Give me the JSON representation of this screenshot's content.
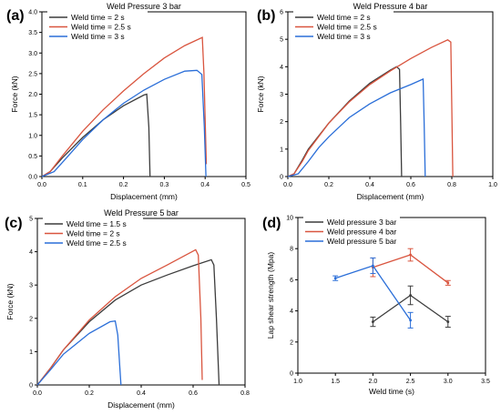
{
  "chart_data": [
    {
      "panel": "(a)",
      "type": "line",
      "title": "Weld Pressure 3 bar",
      "xlabel": "Displacement (mm)",
      "ylabel": "Force (kN)",
      "xlim": [
        0,
        0.5
      ],
      "ylim": [
        0,
        4.0
      ],
      "xticks": [
        "0.0",
        "0.1",
        "0.2",
        "0.3",
        "0.4",
        "0.5"
      ],
      "yticks": [
        "0.0",
        "0.5",
        "1.0",
        "1.5",
        "2.0",
        "2.5",
        "3.0",
        "3.5",
        "4.0"
      ],
      "legend_position": "top-left",
      "series": [
        {
          "name": "Weld time = 2 s",
          "color": "#3c3c3c",
          "points": [
            [
              0,
              0
            ],
            [
              0.02,
              0.12
            ],
            [
              0.05,
              0.45
            ],
            [
              0.1,
              0.95
            ],
            [
              0.15,
              1.38
            ],
            [
              0.2,
              1.72
            ],
            [
              0.25,
              1.98
            ],
            [
              0.257,
              2.0
            ],
            [
              0.262,
              1.2
            ],
            [
              0.265,
              0.0
            ]
          ]
        },
        {
          "name": "Weld time = 2.5 s",
          "color": "#d9553f",
          "points": [
            [
              0,
              0
            ],
            [
              0.02,
              0.12
            ],
            [
              0.05,
              0.5
            ],
            [
              0.1,
              1.1
            ],
            [
              0.15,
              1.62
            ],
            [
              0.2,
              2.08
            ],
            [
              0.25,
              2.5
            ],
            [
              0.3,
              2.88
            ],
            [
              0.35,
              3.18
            ],
            [
              0.393,
              3.38
            ],
            [
              0.397,
              2.5
            ],
            [
              0.403,
              0.3
            ]
          ]
        },
        {
          "name": "Weld time = 3 s",
          "color": "#2a6ed8",
          "points": [
            [
              0,
              0
            ],
            [
              0.03,
              0.12
            ],
            [
              0.06,
              0.45
            ],
            [
              0.1,
              0.9
            ],
            [
              0.15,
              1.38
            ],
            [
              0.2,
              1.78
            ],
            [
              0.25,
              2.1
            ],
            [
              0.3,
              2.36
            ],
            [
              0.35,
              2.56
            ],
            [
              0.38,
              2.58
            ],
            [
              0.392,
              2.48
            ],
            [
              0.398,
              1.2
            ],
            [
              0.402,
              0.0
            ]
          ]
        }
      ]
    },
    {
      "panel": "(b)",
      "type": "line",
      "title": "Weld Pressure 4 bar",
      "xlabel": "Displacement (mm)",
      "ylabel": "Force (kN)",
      "xlim": [
        0,
        1.0
      ],
      "ylim": [
        0,
        6
      ],
      "xticks": [
        "0.0",
        "0.2",
        "0.4",
        "0.6",
        "0.8",
        "1.0"
      ],
      "yticks": [
        "0",
        "1",
        "2",
        "3",
        "4",
        "5",
        "6"
      ],
      "legend_position": "top-left",
      "series": [
        {
          "name": "Weld time = 2 s",
          "color": "#3c3c3c",
          "points": [
            [
              0,
              0
            ],
            [
              0.03,
              0.1
            ],
            [
              0.07,
              0.6
            ],
            [
              0.1,
              1.0
            ],
            [
              0.2,
              1.95
            ],
            [
              0.3,
              2.75
            ],
            [
              0.4,
              3.4
            ],
            [
              0.5,
              3.88
            ],
            [
              0.53,
              4.0
            ],
            [
              0.545,
              3.9
            ],
            [
              0.55,
              2.0
            ],
            [
              0.555,
              0.0
            ]
          ]
        },
        {
          "name": "Weld time = 2.5 s",
          "color": "#d9553f",
          "points": [
            [
              0,
              0
            ],
            [
              0.03,
              0.1
            ],
            [
              0.07,
              0.55
            ],
            [
              0.1,
              0.95
            ],
            [
              0.2,
              1.95
            ],
            [
              0.3,
              2.72
            ],
            [
              0.4,
              3.35
            ],
            [
              0.5,
              3.85
            ],
            [
              0.6,
              4.3
            ],
            [
              0.7,
              4.7
            ],
            [
              0.78,
              4.98
            ],
            [
              0.795,
              4.9
            ],
            [
              0.8,
              2.5
            ],
            [
              0.805,
              0.0
            ]
          ]
        },
        {
          "name": "Weld time = 3 s",
          "color": "#2a6ed8",
          "points": [
            [
              0,
              0
            ],
            [
              0.05,
              0.1
            ],
            [
              0.1,
              0.55
            ],
            [
              0.15,
              1.05
            ],
            [
              0.2,
              1.45
            ],
            [
              0.3,
              2.15
            ],
            [
              0.4,
              2.65
            ],
            [
              0.5,
              3.05
            ],
            [
              0.6,
              3.35
            ],
            [
              0.66,
              3.55
            ],
            [
              0.665,
              2.0
            ],
            [
              0.67,
              0.0
            ]
          ]
        }
      ]
    },
    {
      "panel": "(c)",
      "type": "line",
      "title": "Weld Pressure 5 bar",
      "xlabel": "Displacement (mm)",
      "ylabel": "Force (kN)",
      "xlim": [
        0,
        0.8
      ],
      "ylim": [
        0,
        5
      ],
      "xticks": [
        "0.0",
        "0.2",
        "0.4",
        "0.6",
        "0.8"
      ],
      "yticks": [
        "0",
        "1",
        "2",
        "3",
        "4",
        "5"
      ],
      "legend_position": "top-left",
      "series": [
        {
          "name": "Weld time = 1.5 s",
          "color": "#3c3c3c",
          "points": [
            [
              0,
              0
            ],
            [
              0.05,
              0.5
            ],
            [
              0.1,
              1.05
            ],
            [
              0.2,
              1.9
            ],
            [
              0.3,
              2.55
            ],
            [
              0.4,
              3.0
            ],
            [
              0.5,
              3.3
            ],
            [
              0.6,
              3.58
            ],
            [
              0.67,
              3.76
            ],
            [
              0.68,
              3.6
            ],
            [
              0.69,
              2.0
            ],
            [
              0.7,
              0.0
            ]
          ]
        },
        {
          "name": "Weld time = 2 s",
          "color": "#d9553f",
          "points": [
            [
              0,
              0
            ],
            [
              0.05,
              0.5
            ],
            [
              0.1,
              1.05
            ],
            [
              0.2,
              1.95
            ],
            [
              0.3,
              2.65
            ],
            [
              0.4,
              3.2
            ],
            [
              0.5,
              3.6
            ],
            [
              0.6,
              4.02
            ],
            [
              0.61,
              4.06
            ],
            [
              0.62,
              3.9
            ],
            [
              0.63,
              2.0
            ],
            [
              0.635,
              0.15
            ]
          ]
        },
        {
          "name": "Weld time = 2.5 s",
          "color": "#2a6ed8",
          "points": [
            [
              0,
              0
            ],
            [
              0.05,
              0.45
            ],
            [
              0.1,
              0.92
            ],
            [
              0.2,
              1.55
            ],
            [
              0.28,
              1.9
            ],
            [
              0.3,
              1.92
            ],
            [
              0.31,
              1.5
            ],
            [
              0.318,
              0.5
            ],
            [
              0.322,
              0.0
            ]
          ]
        }
      ]
    },
    {
      "panel": "(d)",
      "type": "line",
      "title": "",
      "xlabel": "Weld time (s)",
      "ylabel": "Lap shear strength (Mpa)",
      "xlim": [
        1.0,
        3.5
      ],
      "ylim": [
        0,
        10
      ],
      "xticks": [
        "1.0",
        "1.5",
        "2.0",
        "2.5",
        "3.0",
        "3.5"
      ],
      "yticks": [
        "0",
        "2",
        "4",
        "6",
        "8",
        "10"
      ],
      "legend_position": "top-left",
      "series": [
        {
          "name": "Weld pressure 3 bar",
          "color": "#3c3c3c",
          "x": [
            2.0,
            2.5,
            3.0
          ],
          "y": [
            3.3,
            5.0,
            3.3
          ],
          "err": [
            0.3,
            0.6,
            0.35
          ]
        },
        {
          "name": "Weld pressure 4 bar",
          "color": "#d9553f",
          "x": [
            2.0,
            2.5,
            3.0
          ],
          "y": [
            6.8,
            7.6,
            5.8
          ],
          "err": [
            0.6,
            0.4,
            0.15
          ]
        },
        {
          "name": "Weld pressure 5 bar",
          "color": "#2a6ed8",
          "x": [
            1.5,
            2.0,
            2.5
          ],
          "y": [
            6.1,
            6.9,
            3.4
          ],
          "err": [
            0.15,
            0.5,
            0.5
          ]
        }
      ]
    }
  ]
}
